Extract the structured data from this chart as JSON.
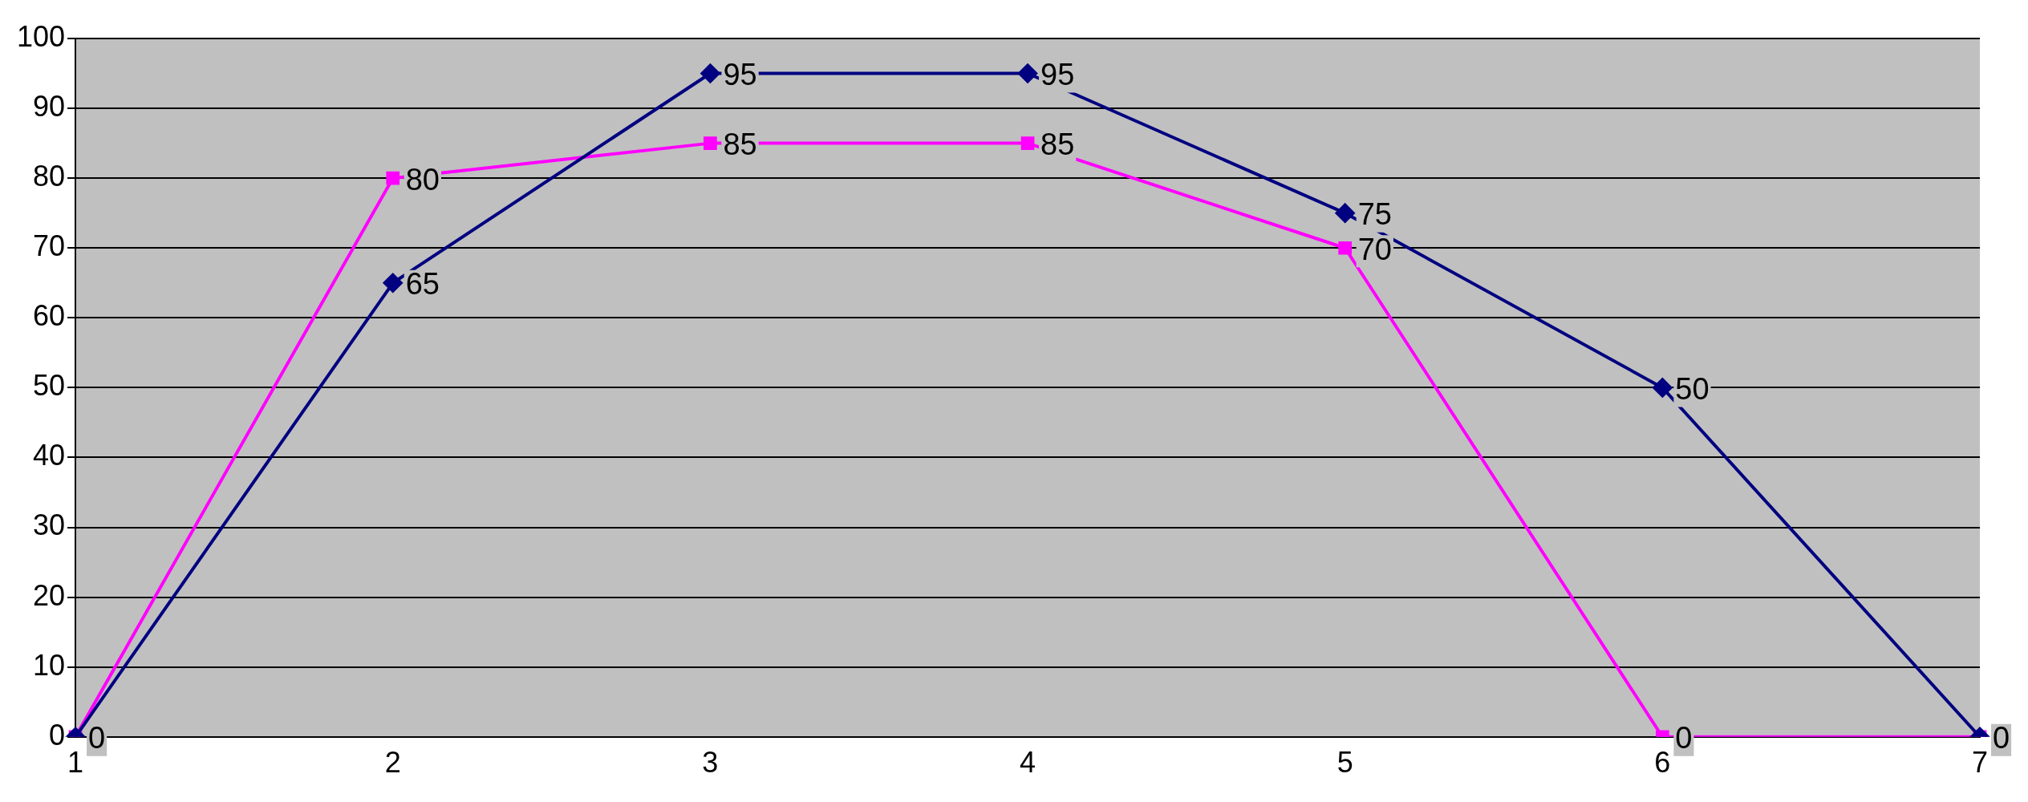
{
  "chart_data": {
    "type": "line",
    "categories": [
      "1",
      "2",
      "3",
      "4",
      "5",
      "6",
      "7"
    ],
    "series": [
      {
        "color": "#000080",
        "values": [
          0,
          65,
          95,
          95,
          75,
          50,
          0
        ],
        "marker": "diamond",
        "value_labels": [
          null,
          "65",
          "95",
          "95",
          "75",
          "50",
          null
        ]
      },
      {
        "color": "#ff00ff",
        "values": [
          0,
          80,
          85,
          85,
          70,
          0,
          0
        ],
        "marker": "square",
        "value_labels": [
          "0",
          "80",
          "85",
          "85",
          "70",
          "0",
          "0"
        ]
      }
    ],
    "ylim": [
      0,
      100
    ],
    "yticks": [
      0,
      10,
      20,
      30,
      40,
      50,
      60,
      70,
      80,
      90,
      100
    ],
    "grid": "y",
    "legend": false,
    "line_style": "solid"
  }
}
